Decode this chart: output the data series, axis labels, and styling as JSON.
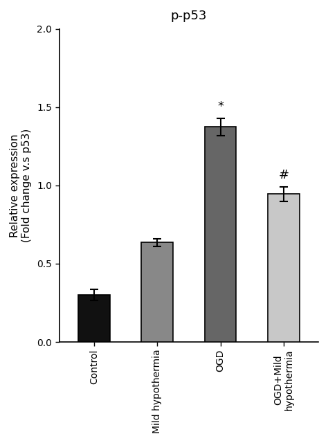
{
  "title": "p-p53",
  "ylabel_line1": "Relative expression",
  "ylabel_line2": "(Fold change v.s p53)",
  "categories": [
    "Control",
    "Mild hypothermia",
    "OGD",
    "OGD+Mild\nhypothermia"
  ],
  "values": [
    0.3,
    0.635,
    1.375,
    0.945
  ],
  "errors": [
    0.035,
    0.025,
    0.055,
    0.045
  ],
  "bar_colors": [
    "#111111",
    "#888888",
    "#666666",
    "#c8c8c8"
  ],
  "bar_edgecolors": [
    "#000000",
    "#000000",
    "#000000",
    "#000000"
  ],
  "ylim": [
    0.0,
    2.0
  ],
  "yticks": [
    0.0,
    0.5,
    1.0,
    1.5,
    2.0
  ],
  "significance_labels": [
    "",
    "",
    "*",
    "#"
  ],
  "sig_fontsize": 13,
  "title_fontsize": 13,
  "ylabel_fontsize": 11,
  "tick_fontsize": 10,
  "bar_width": 0.5,
  "figsize": [
    4.74,
    6.4
  ],
  "dpi": 100,
  "background_color": "#ffffff",
  "spine_color": "#000000",
  "error_capsize": 4,
  "error_linewidth": 1.5,
  "error_color": "#000000"
}
